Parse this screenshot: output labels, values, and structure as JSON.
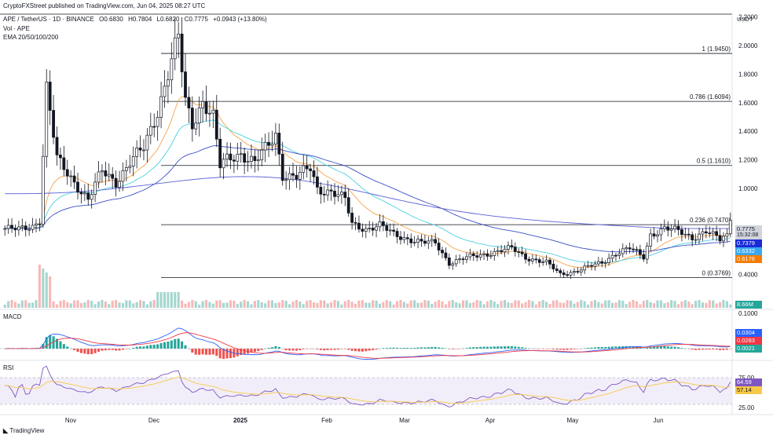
{
  "header": {
    "published": "CryptoFXStreet published on TradingView.com, Jun 04, 2025 08:27 UTC",
    "symbol_line": "APE / TetherUS · 1D · BINANCE",
    "ohlc": {
      "open": "O0.6830",
      "high": "H0.7804",
      "low": "L0.6820",
      "close": "C0.7775",
      "change": "+0.0943 (+13.80%)"
    },
    "vol_label": "Vol · APE",
    "ema_label": "EMA 20/50/100/200"
  },
  "currency": "USDT",
  "price_axis": [
    "2.2000",
    "2.0000",
    "1.8000",
    "1.6000",
    "1.4000",
    "1.2000",
    "1.0000",
    "0.4000"
  ],
  "fib_levels": [
    {
      "label": "1 (1.9450)",
      "value": 1.945
    },
    {
      "label": "0.786 (1.6094)",
      "value": 1.6094
    },
    {
      "label": "0.5 (1.1610)",
      "value": 1.161
    },
    {
      "label": "0.236 (0.7470)",
      "value": 0.747
    },
    {
      "label": "0 (0.3769)",
      "value": 0.3769
    }
  ],
  "tags": {
    "price": "0.7775",
    "countdown": "15:32:08",
    "ema_blue": "0.7379",
    "ema_cyan": "0.6332",
    "ema_orange": "0.6176",
    "volume": "8.66M",
    "macd": "0.0304",
    "signal": "0.0283",
    "hist": "0.0021",
    "rsi": "64.59",
    "rsi_ma": "57.14"
  },
  "macd_label": "MACD",
  "macd_axis": "0.1000",
  "rsi_label": "RSI",
  "rsi_axis": [
    "75.00",
    "25.00"
  ],
  "time_axis": [
    "Nov",
    "Dec",
    "2025",
    "Feb",
    "Mar",
    "Apr",
    "May",
    "Jun"
  ],
  "brand": "TradingView",
  "colors": {
    "up": "#131722",
    "down": "#131722",
    "ema20": "#5a5fd6",
    "ema50": "#f7a24a",
    "ema100": "#4dd0e1",
    "ema200": "#3b4dc7",
    "macd": "#2962ff",
    "signal": "#f23645",
    "hist_up": "#26a69a",
    "hist_down": "#ef5350",
    "rsi": "#7e57c2",
    "rsi_ma": "#f7c948"
  },
  "chart_data": {
    "type": "candlestick",
    "pair": "APE/USDT",
    "ylim": [
      0.33,
      2.22
    ],
    "waypoints": [
      [
        0,
        0.72
      ],
      [
        4,
        0.71
      ],
      [
        8,
        0.74
      ],
      [
        10,
        0.78
      ],
      [
        12,
        1.7
      ],
      [
        15,
        1.2
      ],
      [
        20,
        1.05
      ],
      [
        24,
        0.92
      ],
      [
        28,
        1.12
      ],
      [
        32,
        1.05
      ],
      [
        36,
        1.18
      ],
      [
        40,
        1.28
      ],
      [
        44,
        1.55
      ],
      [
        48,
        1.9
      ],
      [
        50,
        2.05
      ],
      [
        52,
        1.6
      ],
      [
        54,
        1.45
      ],
      [
        57,
        1.62
      ],
      [
        60,
        1.5
      ],
      [
        62,
        1.15
      ],
      [
        64,
        1.2
      ],
      [
        68,
        1.25
      ],
      [
        72,
        1.18
      ],
      [
        76,
        1.3
      ],
      [
        78,
        1.38
      ],
      [
        80,
        1.1
      ],
      [
        84,
        1.08
      ],
      [
        88,
        1.14
      ],
      [
        90,
        1.0
      ],
      [
        94,
        0.98
      ],
      [
        98,
        0.92
      ],
      [
        100,
        0.75
      ],
      [
        104,
        0.72
      ],
      [
        108,
        0.74
      ],
      [
        112,
        0.68
      ],
      [
        116,
        0.65
      ],
      [
        120,
        0.62
      ],
      [
        124,
        0.62
      ],
      [
        128,
        0.48
      ],
      [
        134,
        0.52
      ],
      [
        140,
        0.55
      ],
      [
        146,
        0.58
      ],
      [
        150,
        0.52
      ],
      [
        156,
        0.48
      ],
      [
        160,
        0.4
      ],
      [
        164,
        0.42
      ],
      [
        168,
        0.45
      ],
      [
        172,
        0.48
      ],
      [
        176,
        0.55
      ],
      [
        180,
        0.58
      ],
      [
        184,
        0.52
      ],
      [
        186,
        0.68
      ],
      [
        190,
        0.72
      ],
      [
        194,
        0.7
      ],
      [
        198,
        0.66
      ],
      [
        202,
        0.7
      ],
      [
        206,
        0.64
      ],
      [
        208,
        0.683
      ],
      [
        209,
        0.7775
      ]
    ],
    "current": {
      "open": 0.683,
      "high": 0.7804,
      "low": 0.682,
      "close": 0.7775
    },
    "rsi_levels": [
      75,
      25
    ]
  }
}
